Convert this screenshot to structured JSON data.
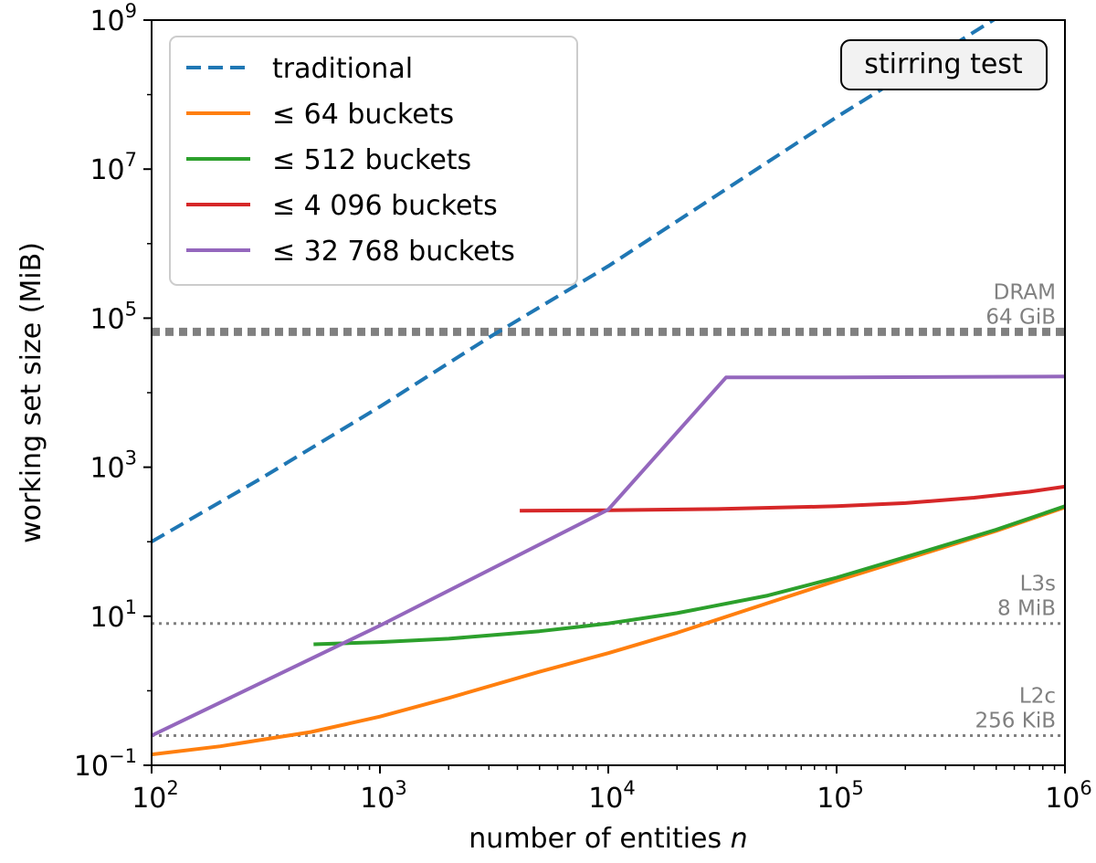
{
  "chart_data": {
    "type": "line",
    "xlabel": "number of entities n",
    "xlabel_main": "number of entities ",
    "xlabel_var": "n",
    "ylabel": "working set size (MiB)",
    "x_scale": "log",
    "y_scale": "log",
    "xlim": [
      100,
      1000000
    ],
    "ylim": [
      0.1,
      1000000000
    ],
    "x_ticks": [
      {
        "value": 100,
        "base": "10",
        "exp": "2"
      },
      {
        "value": 1000,
        "base": "10",
        "exp": "3"
      },
      {
        "value": 10000,
        "base": "10",
        "exp": "4"
      },
      {
        "value": 100000,
        "base": "10",
        "exp": "5"
      },
      {
        "value": 1000000,
        "base": "10",
        "exp": "6"
      }
    ],
    "y_ticks": [
      {
        "value": 0.1,
        "base": "10",
        "exp": "−1"
      },
      {
        "value": 10,
        "base": "10",
        "exp": "1"
      },
      {
        "value": 1000,
        "base": "10",
        "exp": "3"
      },
      {
        "value": 100000,
        "base": "10",
        "exp": "5"
      },
      {
        "value": 10000000,
        "base": "10",
        "exp": "7"
      },
      {
        "value": 1000000000,
        "base": "10",
        "exp": "9"
      }
    ],
    "grid": false,
    "legend_position": "top-left",
    "annotation": "stirring test",
    "series": [
      {
        "name": "traditional",
        "color": "#1f77b4",
        "style": "dashed",
        "x": [
          100,
          300,
          1000,
          3000,
          10000,
          30000,
          100000,
          300000,
          1000000
        ],
        "y": [
          100,
          700,
          6500,
          55000,
          500000,
          4500000,
          50000000,
          400000000,
          4000000000
        ]
      },
      {
        "name": "≤ 64 buckets",
        "color": "#ff7f0e",
        "style": "solid",
        "x": [
          100,
          200,
          500,
          1000,
          2000,
          5000,
          10000,
          20000,
          50000,
          100000,
          200000,
          500000,
          1000000
        ],
        "y": [
          0.14,
          0.18,
          0.28,
          0.45,
          0.8,
          1.8,
          3.2,
          6,
          15,
          30,
          58,
          140,
          290
        ]
      },
      {
        "name": "≤ 512 buckets",
        "color": "#2ca02c",
        "style": "solid",
        "x": [
          512,
          1000,
          2000,
          5000,
          10000,
          20000,
          50000,
          100000,
          200000,
          500000,
          1000000
        ],
        "y": [
          4.2,
          4.5,
          5.0,
          6.3,
          8.0,
          11,
          19,
          33,
          62,
          145,
          300
        ]
      },
      {
        "name": "≤ 4 096 buckets",
        "color": "#d62728",
        "style": "solid",
        "x": [
          4096,
          10000,
          30000,
          100000,
          200000,
          400000,
          700000,
          1000000
        ],
        "y": [
          260,
          265,
          275,
          300,
          330,
          390,
          470,
          550
        ]
      },
      {
        "name": "≤ 32 768 buckets",
        "color": "#9467bd",
        "style": "solid",
        "x": [
          100,
          1000,
          10000,
          32768,
          100000,
          1000000
        ],
        "y": [
          0.25,
          7.5,
          270,
          16000,
          16000,
          16500
        ]
      }
    ],
    "reference_lines": [
      {
        "y": 65536,
        "label1": "DRAM",
        "label2": "64 GiB",
        "color": "#808080",
        "style": "thick-dotted"
      },
      {
        "y": 8,
        "label1": "L3s",
        "label2": "8 MiB",
        "color": "#808080",
        "style": "dotted"
      },
      {
        "y": 0.25,
        "label1": "L2c",
        "label2": "256 KiB",
        "color": "#808080",
        "style": "dotted"
      }
    ]
  }
}
